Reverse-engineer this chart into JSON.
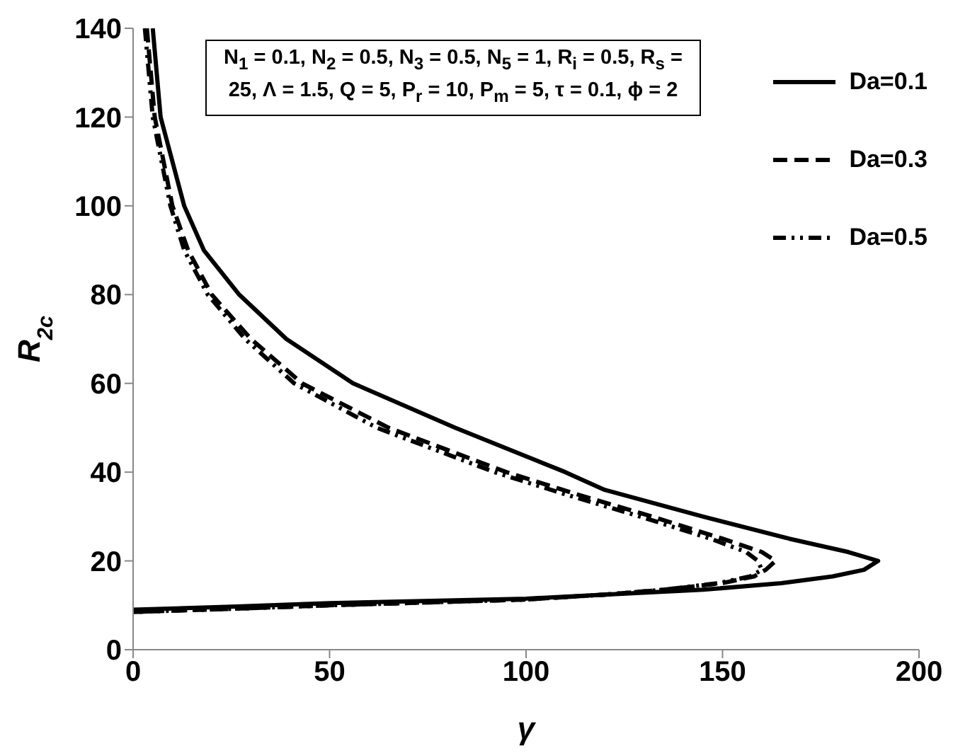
{
  "chart_data": {
    "type": "line",
    "xlabel": "γ",
    "ylabel": "R$_{2c}$",
    "xlim": [
      0,
      200
    ],
    "ylim": [
      0,
      140
    ],
    "xticks": [
      0,
      50,
      100,
      150,
      200
    ],
    "yticks": [
      0,
      20,
      40,
      60,
      80,
      100,
      120,
      140
    ],
    "grid": false,
    "legend": "top right",
    "marker": "none",
    "annotations": [
      "N$_{1}$ = 0.1, N$_{2}$ = 0.5, N$_{3}$ = 0.5, N$_{5}$ = 1, R$_{i}$ = 0.5, R$_{s}$ = 25, Λ = 1.5, Q = 5, P$_{r}$ = 10, P$_{m}$ = 5, τ = 0.1, ϕ = 2"
    ],
    "series": [
      {
        "name": "Da=0.1",
        "color": "#000000",
        "line_style": "solid",
        "x": [
          5,
          7,
          13,
          18,
          27,
          39,
          56,
          82,
          110,
          120,
          145,
          167,
          182,
          189.6,
          186,
          178,
          165,
          145,
          120,
          100,
          50,
          25,
          0
        ],
        "values": [
          140,
          120,
          100,
          90,
          80,
          70,
          60,
          50,
          40,
          36,
          30,
          25,
          22,
          20,
          18,
          16.5,
          15,
          13.5,
          12.4,
          11.5,
          10.5,
          9.7,
          9
        ]
      },
      {
        "name": "Da=0.3",
        "color": "#000000",
        "line_style": "dashed",
        "x": [
          3.5,
          5.5,
          10,
          14,
          20,
          30,
          43,
          65,
          95,
          113,
          132,
          150,
          160,
          163.5,
          161,
          158,
          150,
          135,
          120,
          100,
          50,
          25,
          0
        ],
        "values": [
          140,
          120,
          100,
          90,
          80,
          70,
          60,
          50,
          40,
          35,
          30,
          25,
          22,
          20,
          18,
          16.5,
          15,
          13.5,
          12.4,
          11.3,
          10,
          9.2,
          8.5
        ]
      },
      {
        "name": "Da=0.5",
        "color": "#000000",
        "line_style": "dashdot",
        "x": [
          3,
          5,
          9.5,
          13,
          19,
          28.5,
          41,
          62,
          92,
          110,
          129,
          147,
          156,
          159,
          160,
          157,
          149,
          135,
          120,
          100,
          50,
          25,
          0
        ],
        "values": [
          140,
          120,
          100,
          90,
          80,
          70,
          60,
          50,
          40,
          35,
          30,
          25,
          22,
          20,
          18,
          16.5,
          15,
          13.5,
          12.4,
          11.3,
          10,
          9.2,
          8.5
        ]
      }
    ]
  }
}
